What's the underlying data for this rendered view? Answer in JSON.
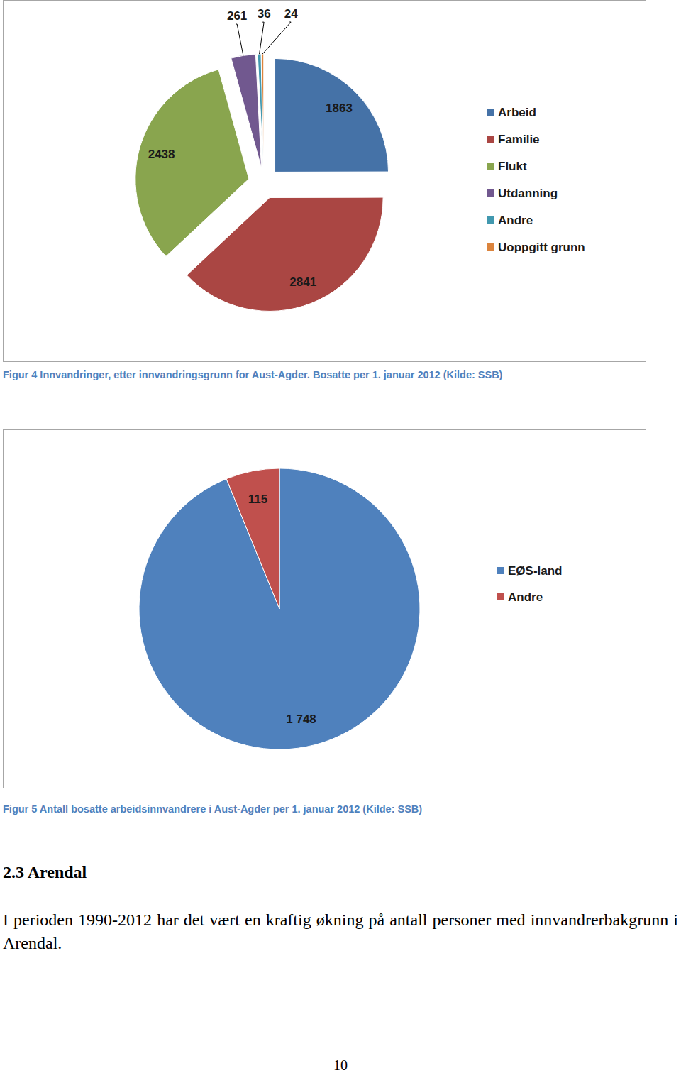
{
  "chart_data": [
    {
      "type": "pie",
      "title": "Figur 4 Innvandringer, etter innvandringsgrunn for Aust-Agder. Bosatte per 1. januar 2012 (Kilde: SSB)",
      "categories": [
        "Arbeid",
        "Familie",
        "Flukt",
        "Utdanning",
        "Andre",
        "Uoppgitt grunn"
      ],
      "values": [
        1863,
        2841,
        2438,
        261,
        36,
        24
      ],
      "colors": [
        "#4572a7",
        "#aa4643",
        "#89a54e",
        "#71588f",
        "#4198af",
        "#db843d"
      ],
      "data_labels": true,
      "legend": "right"
    },
    {
      "type": "pie",
      "title": "Figur 5 Antall bosatte arbeidsinnvandrere i Aust-Agder per 1. januar 2012 (Kilde: SSB)",
      "categories": [
        "EØS-land",
        "Andre"
      ],
      "values": [
        1748,
        115
      ],
      "value_labels": [
        "1 748",
        "115"
      ],
      "colors": [
        "#4f81bd",
        "#c0504d"
      ],
      "data_labels": true,
      "legend": "right"
    }
  ],
  "heading": "2.3 Arendal",
  "paragraph": "I perioden 1990-2012 har det vært en kraftig økning på antall personer med innvandrerbakgrunn i Arendal.",
  "page_number": "10"
}
